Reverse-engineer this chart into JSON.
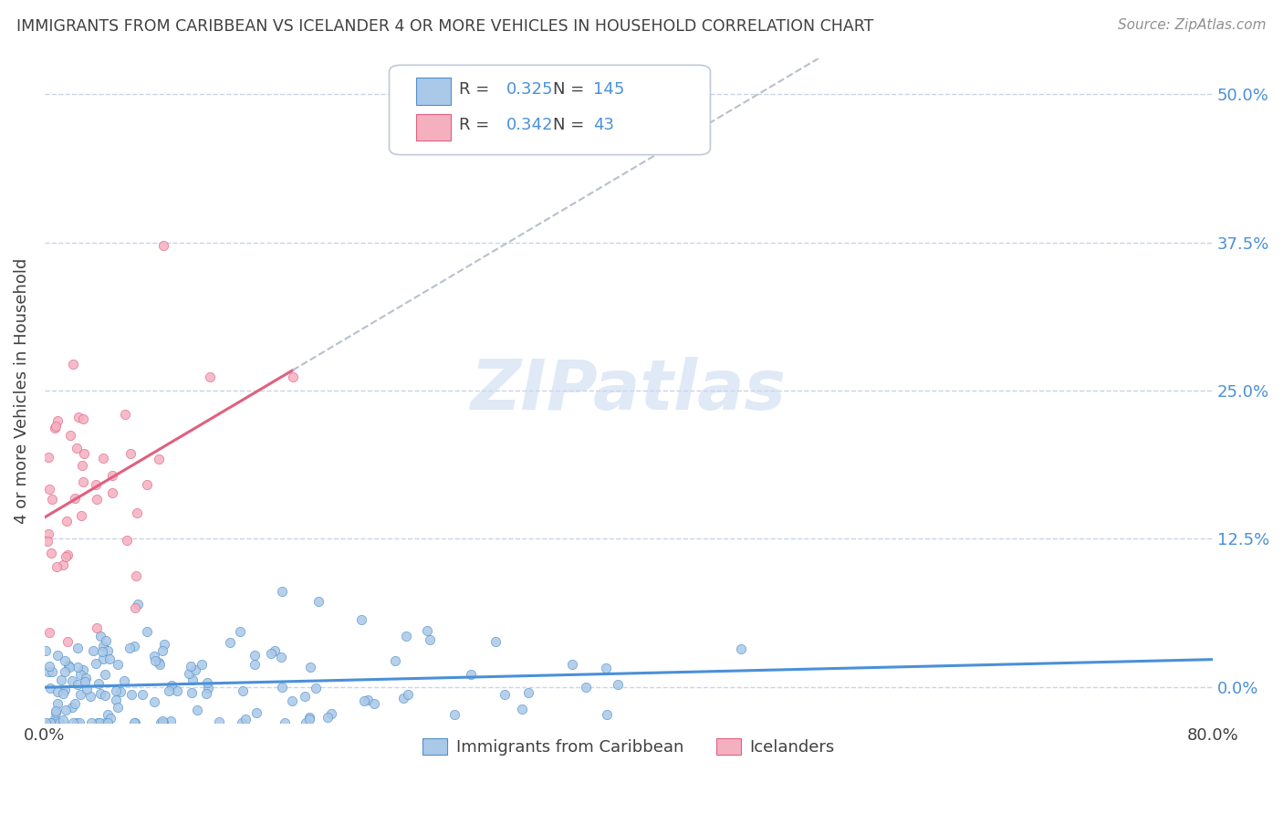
{
  "title": "IMMIGRANTS FROM CARIBBEAN VS ICELANDER 4 OR MORE VEHICLES IN HOUSEHOLD CORRELATION CHART",
  "source": "Source: ZipAtlas.com",
  "ylabel": "4 or more Vehicles in Household",
  "ytick_vals": [
    0.0,
    12.5,
    25.0,
    37.5,
    50.0
  ],
  "ytick_labels": [
    "0.0%",
    "12.5%",
    "25.0%",
    "37.5%",
    "50.0%"
  ],
  "xlim": [
    0.0,
    80.0
  ],
  "ylim": [
    -3.0,
    53.0
  ],
  "xtick_labels": [
    "0.0%",
    "80.0%"
  ],
  "xtick_vals": [
    0.0,
    80.0
  ],
  "legend_label1": "Immigrants from Caribbean",
  "legend_label2": "Icelanders",
  "R1": 0.325,
  "N1": 145,
  "R2": 0.342,
  "N2": 43,
  "color1_face": "#aac8e8",
  "color1_edge": "#5090c8",
  "color2_face": "#f5b0c0",
  "color2_edge": "#e06080",
  "line_color1": "#4a90d9",
  "line_color2": "#e06080",
  "line_color_ext": "#b8c0cc",
  "watermark_color": "#c8d8f0",
  "background_color": "#ffffff",
  "grid_color": "#c8d4e8",
  "title_color": "#404040",
  "source_color": "#909090",
  "label_color": "#4a90d9",
  "seed1": 42,
  "seed2": 77,
  "blue_intercept": -1.0,
  "blue_slope": 0.055,
  "blue_noise_std": 3.0,
  "blue_x_scale": 11.0,
  "blue_x_max": 76.0,
  "pink_intercept": 16.0,
  "pink_slope": 0.52,
  "pink_noise_std": 6.5,
  "pink_x_scale": 4.5,
  "pink_x_max": 22.0
}
